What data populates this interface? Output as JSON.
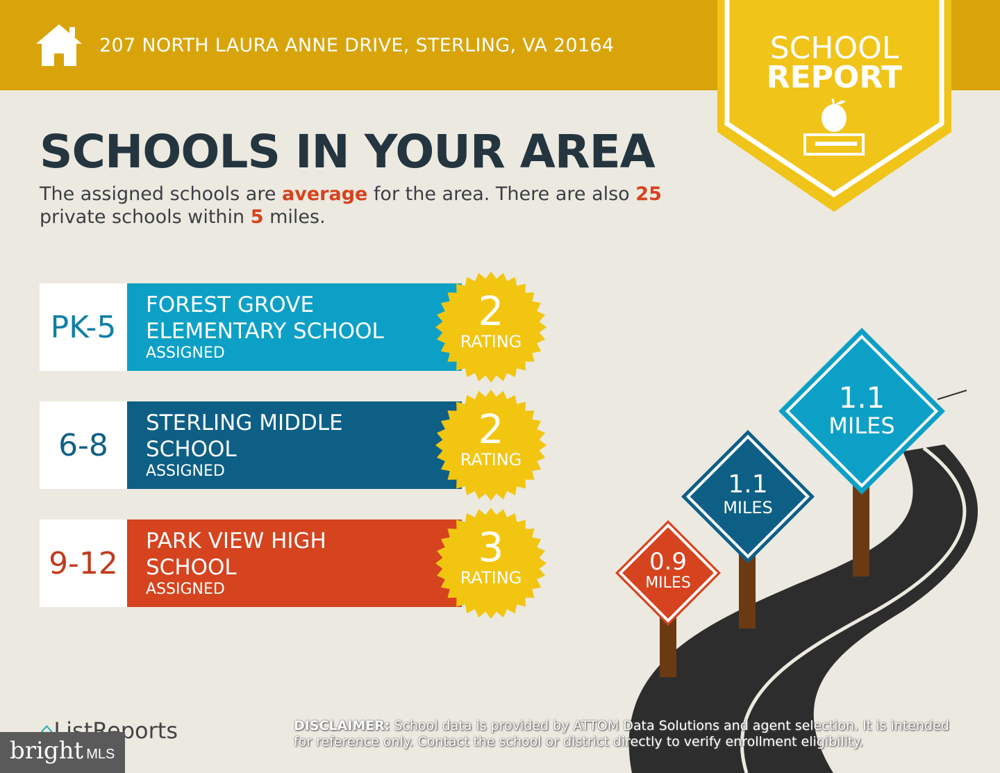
{
  "header": {
    "address": "207 NORTH LAURA ANNE DRIVE, STERLING, VA 20164",
    "icon": "house-icon"
  },
  "badge": {
    "line1": "SCHOOL",
    "line2": "REPORT",
    "icon": "apple-on-book-icon"
  },
  "title": "SCHOOLS IN YOUR AREA",
  "summary": {
    "p1": "The assigned schools are ",
    "rating_word": "average",
    "p2": " for the area. There are also ",
    "private_count": "25",
    "p3": " private schools within ",
    "miles": "5",
    "p4": " miles."
  },
  "schools": [
    {
      "grades": "PK-5",
      "name1": "FOREST GROVE",
      "name2": "ELEMENTARY SCHOOL",
      "status": "ASSIGNED",
      "rating": "2",
      "rating_label": "RATING",
      "distance": "1.1",
      "distance_unit": "MILES",
      "color": "#0DA0C6",
      "grade_color": "#0E7FA6"
    },
    {
      "grades": "6-8",
      "name1": "STERLING MIDDLE",
      "name2": "SCHOOL",
      "status": "ASSIGNED",
      "rating": "2",
      "rating_label": "RATING",
      "distance": "1.1",
      "distance_unit": "MILES",
      "color": "#0E5F85",
      "grade_color": "#0E5F85"
    },
    {
      "grades": "9-12",
      "name1": "PARK VIEW HIGH",
      "name2": "SCHOOL",
      "status": "ASSIGNED",
      "rating": "3",
      "rating_label": "RATING",
      "distance": "0.9",
      "distance_unit": "MILES",
      "color": "#D5431F",
      "grade_color": "#C23B1C"
    }
  ],
  "footer": {
    "brand": "ListReports",
    "disclaimer_label": "DISCLAIMER:",
    "disclaimer": " School data is provided by ATTOM Data Solutions and agent selection. It is intended for reference only. Contact the school or district directly to verify enrollment eligibility.",
    "watermark_main": "bright",
    "watermark_sub": "MLS"
  }
}
